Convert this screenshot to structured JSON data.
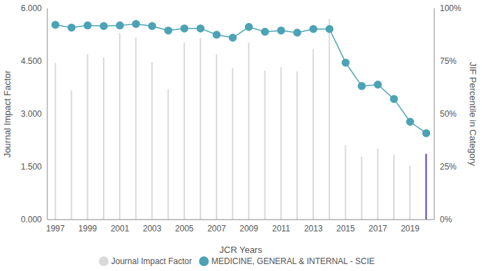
{
  "chart_data": {
    "type": "bar+line",
    "x_label": "JCR Years",
    "y_label": "Journal Impact Factor",
    "y2_label": "JIF Percentile in Category",
    "categories": [
      "1997",
      null,
      "1999",
      null,
      "2001",
      null,
      "2003",
      null,
      "2005",
      null,
      "2007",
      null,
      "2009",
      null,
      "2011",
      null,
      "2013",
      null,
      "2015",
      null,
      "2017",
      null,
      "2019",
      null
    ],
    "series": [
      {
        "name": "Journal Impact Factor",
        "type": "bar",
        "color": "#d9d9d9",
        "colors": [
          "#d9d9d9",
          "#d9d9d9",
          "#d9d9d9",
          "#d9d9d9",
          "#d9d9d9",
          "#d9d9d9",
          "#d9d9d9",
          "#d9d9d9",
          "#d9d9d9",
          "#d9d9d9",
          "#d9d9d9",
          "#d9d9d9",
          "#d9d9d9",
          "#d9d9d9",
          "#d9d9d9",
          "#d9d9d9",
          "#d9d9d9",
          "#d9d9d9",
          "#d9d9d9",
          "#d9d9d9",
          "#d9d9d9",
          "#d9d9d9",
          "#d9d9d9",
          "#5e3bc4"
        ],
        "values": [
          4.45,
          3.67,
          4.7,
          4.6,
          5.3,
          5.17,
          4.47,
          3.7,
          5.03,
          5.15,
          4.7,
          4.31,
          5.03,
          4.23,
          4.33,
          4.21,
          4.84,
          5.7,
          2.11,
          1.79,
          2.01,
          1.85,
          1.53,
          1.87
        ]
      },
      {
        "name": "MEDICINE, GENERAL & INTERNAL - SCIE",
        "type": "line",
        "color": "#4ba3b5",
        "marker": "circle",
        "axis": "y2",
        "values": [
          92.2,
          90.9,
          91.9,
          91.6,
          91.9,
          92.6,
          91.6,
          89.5,
          90.5,
          90.5,
          87.5,
          86.1,
          91.2,
          88.9,
          89.5,
          88.5,
          90.2,
          90.2,
          74.3,
          63.2,
          63.9,
          57.1,
          46.3,
          40.9
        ]
      }
    ],
    "ylim": [
      0,
      6
    ],
    "yticks": [
      {
        "value": 0,
        "label": "0.000"
      },
      {
        "value": 1.5,
        "label": "1.500"
      },
      {
        "value": 3,
        "label": "3.000"
      },
      {
        "value": 4.5,
        "label": "4.500"
      },
      {
        "value": 6,
        "label": "6.000"
      }
    ],
    "y2lim": [
      0,
      100
    ],
    "y2ticks": [
      {
        "value": 0,
        "label": "0%"
      },
      {
        "value": 25,
        "label": "25%"
      },
      {
        "value": 50,
        "label": "50%"
      },
      {
        "value": 75,
        "label": "75%"
      },
      {
        "value": 100,
        "label": "100%"
      }
    ],
    "legend": "bottom",
    "grid": false
  }
}
